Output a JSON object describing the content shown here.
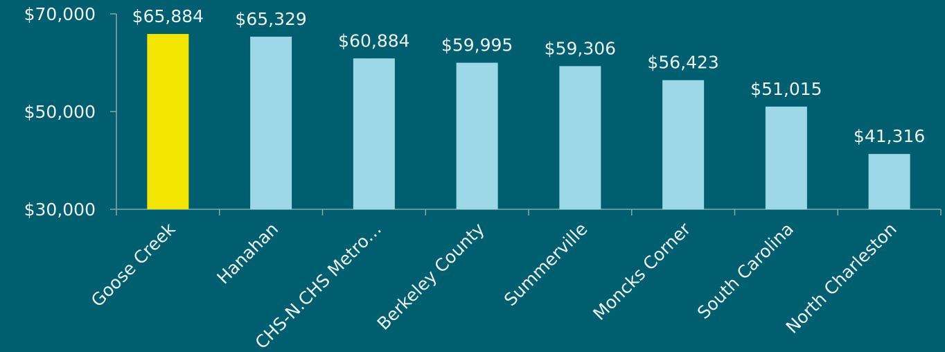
{
  "chart_data": {
    "type": "bar",
    "categories": [
      "Goose Creek",
      "Hanahan",
      "CHS-N.CHS Metro…",
      "Berkeley County",
      "Summerville",
      "Moncks Corner",
      "South Carolina",
      "North Charleston"
    ],
    "values": [
      65884,
      65329,
      60884,
      59995,
      59306,
      56423,
      51015,
      41316
    ],
    "value_labels": [
      "$65,884",
      "$65,329",
      "$60,884",
      "$59,995",
      "$59,306",
      "$56,423",
      "$51,015",
      "$41,316"
    ],
    "colors": [
      "#f2e600",
      "#9dd8e8",
      "#9dd8e8",
      "#9dd8e8",
      "#9dd8e8",
      "#9dd8e8",
      "#9dd8e8",
      "#9dd8e8"
    ],
    "ylim": [
      30000,
      70000
    ],
    "yticks": [
      {
        "value": 30000,
        "label": "$30,000"
      },
      {
        "value": 50000,
        "label": "$50,000"
      },
      {
        "value": 70000,
        "label": "$70,000"
      }
    ],
    "grid": false
  }
}
